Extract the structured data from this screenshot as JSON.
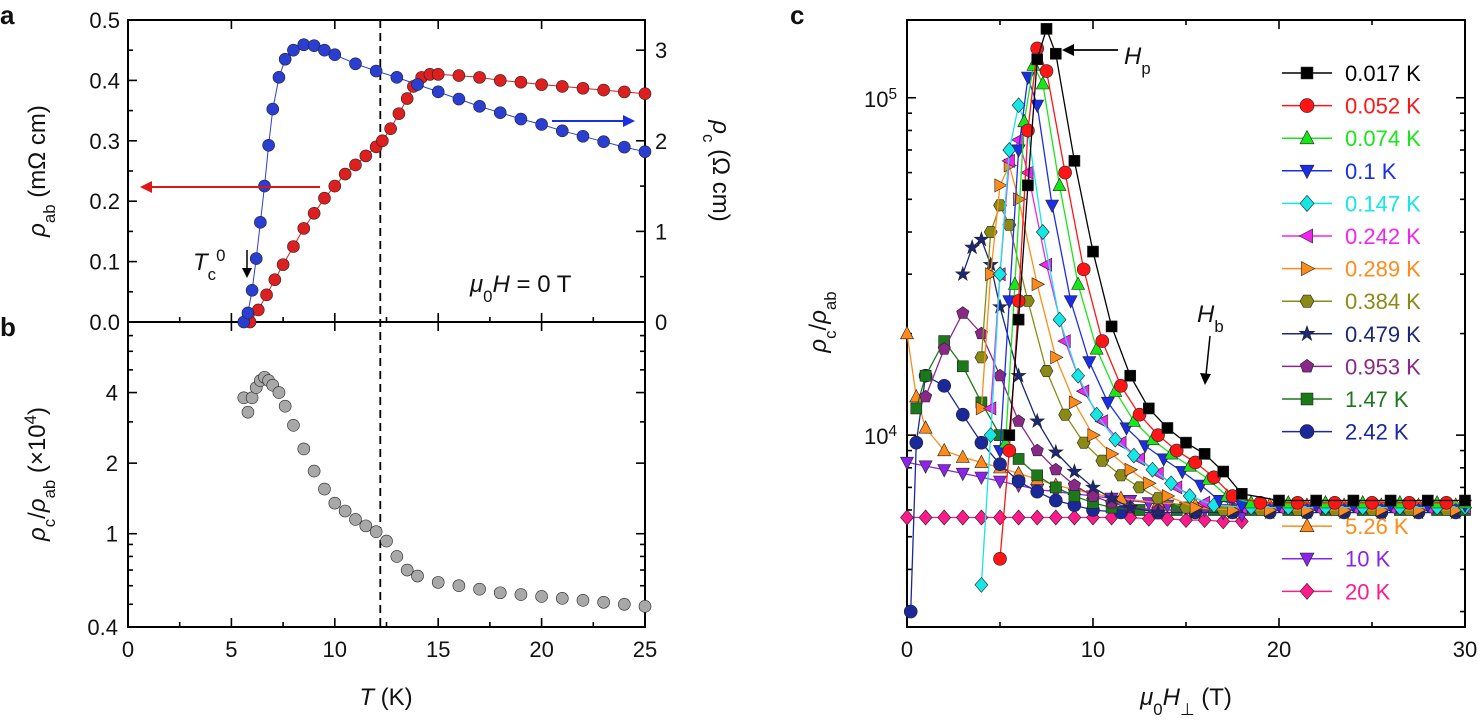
{
  "chart_data": [
    {
      "id": "a",
      "panel_label": "a",
      "type": "scatter",
      "xlabel": "T (K)",
      "xlim": [
        0,
        25
      ],
      "xticks": [
        0,
        5,
        10,
        15,
        20,
        25
      ],
      "ylabel_left": "ρab (mΩ cm)",
      "ylim_left": [
        0,
        0.5
      ],
      "yticks_left": [
        "0.0",
        "0.1",
        "0.2",
        "0.3",
        "0.4",
        "0.5"
      ],
      "ylabel_right": "ρc (Ω cm)",
      "ylim_right": [
        0,
        3.333
      ],
      "yticks_right": [
        "0",
        "1",
        "2",
        "3"
      ],
      "annotations": [
        "Tc0",
        "μ0H = 0 T"
      ],
      "dashed_line_x": 12.2,
      "series": [
        {
          "name": "ρab",
          "axis": "left",
          "color": "#dd1f1f",
          "x": [
            5.9,
            6.3,
            6.7,
            7.1,
            7.5,
            8.0,
            8.5,
            9.0,
            9.5,
            10.0,
            10.5,
            11.0,
            11.5,
            12.0,
            12.3,
            12.7,
            13.1,
            13.5,
            13.8,
            14.2,
            14.6,
            15.0,
            16,
            17,
            18,
            19,
            20,
            21,
            22,
            23,
            24,
            25
          ],
          "y": [
            0.0,
            0.02,
            0.045,
            0.07,
            0.095,
            0.125,
            0.155,
            0.18,
            0.205,
            0.225,
            0.245,
            0.26,
            0.275,
            0.29,
            0.3,
            0.32,
            0.345,
            0.37,
            0.39,
            0.405,
            0.41,
            0.41,
            0.408,
            0.405,
            0.4,
            0.397,
            0.393,
            0.39,
            0.387,
            0.384,
            0.381,
            0.378
          ]
        },
        {
          "name": "ρc",
          "axis": "right",
          "color": "#2a3fd1",
          "x": [
            5.6,
            5.8,
            6.0,
            6.2,
            6.4,
            6.6,
            6.8,
            7.0,
            7.3,
            7.6,
            8.0,
            8.5,
            9.0,
            9.5,
            10,
            11,
            12,
            13,
            14,
            15,
            16,
            17,
            18,
            19,
            20,
            21,
            22,
            23,
            24,
            25
          ],
          "y": [
            0.0,
            0.1,
            0.35,
            0.7,
            1.1,
            1.5,
            1.95,
            2.35,
            2.7,
            2.9,
            3.0,
            3.06,
            3.05,
            3.0,
            2.95,
            2.85,
            2.77,
            2.7,
            2.62,
            2.54,
            2.46,
            2.38,
            2.31,
            2.24,
            2.18,
            2.11,
            2.05,
            1.99,
            1.93,
            1.88
          ]
        }
      ]
    },
    {
      "id": "b",
      "panel_label": "b",
      "type": "scatter",
      "xlabel": "T (K)",
      "xlim": [
        0,
        25
      ],
      "xticks": [
        "0",
        "5",
        "10",
        "15",
        "20",
        "25"
      ],
      "ylabel": "ρc/ρab (×10⁴)",
      "yscale": "log",
      "ylim": [
        0.4,
        8
      ],
      "yticks": [
        "0.4",
        "1",
        "2",
        "4"
      ],
      "dashed_line_x": 12.2,
      "series": [
        {
          "name": "ρc/ρab",
          "color": "#a8a8a8",
          "x": [
            5.6,
            5.8,
            6.0,
            6.2,
            6.4,
            6.6,
            6.8,
            7.0,
            7.3,
            7.6,
            8.0,
            8.5,
            9.0,
            9.5,
            10,
            10.5,
            11,
            11.5,
            12.0,
            12.5,
            13.0,
            13.5,
            14,
            15,
            16,
            17,
            18,
            19,
            20,
            21,
            22,
            23,
            24,
            25
          ],
          "y": [
            3.8,
            3.3,
            3.8,
            4.2,
            4.5,
            4.65,
            4.5,
            4.3,
            4.0,
            3.5,
            2.9,
            2.3,
            1.85,
            1.55,
            1.35,
            1.25,
            1.15,
            1.08,
            1.02,
            0.93,
            0.8,
            0.7,
            0.66,
            0.62,
            0.6,
            0.58,
            0.56,
            0.55,
            0.54,
            0.53,
            0.52,
            0.51,
            0.5,
            0.49
          ]
        }
      ]
    },
    {
      "id": "c",
      "panel_label": "c",
      "type": "line",
      "xlabel": "μ0H⊥ (T)",
      "xlim": [
        0,
        30
      ],
      "xticks": [
        "0",
        "10",
        "20",
        "30"
      ],
      "ylabel": "ρc/ρab",
      "yscale": "log",
      "ylim": [
        2700,
        170000
      ],
      "yticks": [
        "10⁴",
        "10⁵"
      ],
      "annotations": [
        "Hp",
        "Hb"
      ],
      "series": [
        {
          "name": "0.017 K",
          "color": "#000000",
          "marker": "square",
          "x": [
            5.5,
            6.0,
            6.5,
            7.0,
            7.5,
            8.0,
            9.0,
            10,
            11,
            12,
            13,
            14,
            15,
            16,
            17,
            18,
            20,
            22,
            24,
            26,
            28,
            30
          ],
          "y": [
            10000,
            22000,
            55000,
            130000,
            160000,
            135000,
            65000,
            35000,
            21000,
            15000,
            12000,
            10500,
            9500,
            8800,
            7800,
            6700,
            6400,
            6400,
            6400,
            6400,
            6400,
            6400
          ]
        },
        {
          "name": "0.052 K",
          "color": "#ff1515",
          "marker": "circle",
          "x": [
            5.0,
            5.5,
            6.0,
            6.5,
            7.0,
            7.5,
            8.5,
            9.5,
            10.5,
            11.5,
            12.5,
            13.5,
            14.5,
            15.5,
            16.5,
            17.5,
            19,
            21,
            23,
            25,
            27,
            29
          ],
          "y": [
            4300,
            9000,
            25000,
            80000,
            140000,
            120000,
            60000,
            31000,
            19000,
            14000,
            11500,
            10000,
            9000,
            8300,
            7500,
            6600,
            6300,
            6300,
            6300,
            6300,
            6300,
            6300
          ]
        },
        {
          "name": "0.074 K",
          "color": "#19e619",
          "marker": "triangle-up",
          "x": [
            5.3,
            5.8,
            6.3,
            6.8,
            7.3,
            8.2,
            9.2,
            10.2,
            11.2,
            12.2,
            13.2,
            14.2,
            15.2,
            16.2,
            17.2,
            18.5,
            20.5,
            22.5,
            24.5,
            26.5,
            28.5,
            30
          ],
          "y": [
            9500,
            28000,
            85000,
            125000,
            110000,
            55000,
            28000,
            18000,
            13500,
            11000,
            9700,
            8800,
            8100,
            7400,
            6600,
            6300,
            6300,
            6300,
            6300,
            6300,
            6300,
            6300
          ]
        },
        {
          "name": "0.1 K",
          "color": "#1a2ee6",
          "marker": "triangle-down",
          "x": [
            5.0,
            5.5,
            6.0,
            6.5,
            7.0,
            7.8,
            8.8,
            9.8,
            10.8,
            11.8,
            12.8,
            13.8,
            14.8,
            15.8,
            16.8,
            18,
            20,
            22,
            24,
            26,
            28,
            30
          ],
          "y": [
            9000,
            25000,
            70000,
            115000,
            95000,
            48000,
            25000,
            16500,
            12500,
            10500,
            9300,
            8500,
            7800,
            7100,
            6400,
            6200,
            6200,
            6200,
            6200,
            6200,
            6200,
            6200
          ]
        },
        {
          "name": "0.147 K",
          "color": "#15e6e6",
          "marker": "diamond",
          "x": [
            4.0,
            4.5,
            5.0,
            5.5,
            6.0,
            6.5,
            7.3,
            8.2,
            9.2,
            10.2,
            11.2,
            12.2,
            13.2,
            14.2,
            15.2,
            16.5,
            18.5,
            20.5,
            22.5,
            24.5,
            26.5,
            28.5,
            30
          ],
          "y": [
            3600,
            10000,
            30000,
            70000,
            95000,
            80000,
            40000,
            22000,
            15000,
            11500,
            9700,
            8700,
            7900,
            7200,
            6600,
            6200,
            6100,
            6100,
            6100,
            6100,
            6100,
            6100,
            6100
          ]
        },
        {
          "name": "0.242 K",
          "color": "#ef25ef",
          "marker": "triangle-left",
          "x": [
            4.5,
            5.0,
            5.5,
            6.0,
            6.5,
            7.5,
            8.5,
            9.5,
            10.5,
            11.5,
            12.5,
            13.5,
            14.5,
            16,
            18,
            20,
            22,
            24,
            26,
            28,
            30
          ],
          "y": [
            12000,
            30000,
            65000,
            75000,
            60000,
            32000,
            19000,
            13500,
            11000,
            9500,
            8500,
            7700,
            7000,
            6300,
            6100,
            6100,
            6100,
            6100,
            6100,
            6100,
            6100
          ]
        },
        {
          "name": "0.289 K",
          "color": "#ff8c1a",
          "marker": "triangle-right",
          "x": [
            4.0,
            4.5,
            5.0,
            5.5,
            6.0,
            7.0,
            8.0,
            9.0,
            10.0,
            11.0,
            12.0,
            13.0,
            14.0,
            15.5,
            17.5,
            19.5,
            21.5,
            23.5,
            25.5,
            27.5,
            29.5
          ],
          "y": [
            12000,
            30000,
            55000,
            63000,
            50000,
            28000,
            17000,
            12500,
            10000,
            8800,
            7900,
            7200,
            6600,
            6100,
            6000,
            6000,
            6000,
            6000,
            6000,
            6000,
            6000
          ]
        },
        {
          "name": "0.384 K",
          "color": "#8a8a15",
          "marker": "hexagon",
          "x": [
            4.0,
            4.5,
            5.0,
            5.5,
            6.5,
            7.5,
            8.5,
            9.5,
            10.5,
            11.5,
            12.5,
            13.5,
            15,
            17,
            19,
            21,
            23,
            25,
            27,
            29
          ],
          "y": [
            17000,
            40000,
            48000,
            42000,
            25000,
            15500,
            11500,
            9500,
            8400,
            7600,
            7000,
            6500,
            6100,
            6000,
            6000,
            6000,
            6000,
            6000,
            6000,
            6000
          ]
        },
        {
          "name": "0.479 K",
          "color": "#1a2877",
          "marker": "star",
          "x": [
            3.0,
            3.5,
            4.0,
            4.5,
            5.0,
            6.0,
            7.0,
            8.0,
            9.0,
            10.0,
            11.0,
            12.0,
            13.5,
            15.5,
            17.5,
            19.5,
            21.5,
            23.5,
            25.5,
            27.5,
            29.5
          ],
          "y": [
            30000,
            36000,
            38000,
            32000,
            24000,
            15000,
            11000,
            8900,
            7800,
            7000,
            6500,
            6100,
            5900,
            5900,
            5900,
            5900,
            5900,
            5900,
            5900,
            5900,
            5900
          ]
        },
        {
          "name": "0.953 K",
          "color": "#8a2888",
          "marker": "pentagon",
          "x": [
            1.0,
            2.0,
            3.0,
            4.0,
            5.0,
            6.0,
            7.0,
            8.0,
            9.0,
            10.0,
            11.0,
            12.0,
            13.5,
            15.5,
            17.5,
            19.5,
            21.5,
            23.5,
            25.5,
            27.5,
            29.5
          ],
          "y": [
            13000,
            18000,
            23000,
            20000,
            15000,
            11000,
            9000,
            7900,
            7100,
            6600,
            6300,
            6100,
            6000,
            6000,
            6000,
            6000,
            6000,
            6000,
            6000,
            6000,
            6000
          ]
        },
        {
          "name": "1.47 K",
          "color": "#1a7a1a",
          "marker": "square",
          "x": [
            0.5,
            1.0,
            2.0,
            3.0,
            4.0,
            5.0,
            6.0,
            7.0,
            8.0,
            9.0,
            10.0,
            11.0,
            12.5,
            14.5,
            16.5,
            18.5,
            20.5,
            22.5,
            24.5,
            26.5,
            28.5,
            30
          ],
          "y": [
            12000,
            15000,
            19000,
            16000,
            12500,
            10000,
            8500,
            7600,
            7000,
            6600,
            6300,
            6100,
            6000,
            6000,
            6000,
            6000,
            6000,
            6000,
            6000,
            6000,
            6000,
            6000
          ]
        },
        {
          "name": "2.42 K",
          "color": "#1a2899",
          "marker": "circle",
          "x": [
            0.2,
            0.5,
            1.0,
            2.0,
            3.0,
            4.0,
            5.0,
            6.0,
            7.0,
            8.0,
            9.0,
            10.0,
            11.5,
            13.5,
            15.5,
            17.5,
            19.5,
            21.5,
            23.5,
            25.5,
            27.5,
            29.5
          ],
          "y": [
            3000,
            9500,
            15000,
            14000,
            11500,
            9500,
            8200,
            7300,
            6800,
            6400,
            6200,
            6000,
            5900,
            5900,
            5900,
            5900,
            5900,
            5900,
            5900,
            5900,
            5900,
            5900
          ]
        },
        {
          "name": "5.26 K",
          "color": "#ff8c1a",
          "marker": "triangle-up",
          "x": [
            0.0,
            0.5,
            1.0,
            2.0,
            3.0,
            4.0,
            5.0,
            6.0,
            7.0,
            8.0,
            9.0,
            10.0,
            11.5,
            13.5,
            15.5,
            17.5,
            19.5,
            21.5,
            23.5,
            25.5,
            27.5,
            29.5
          ],
          "y": [
            20000,
            13000,
            10500,
            9000,
            8600,
            8300,
            8000,
            7700,
            7400,
            7100,
            6900,
            6700,
            6500,
            6300,
            6200,
            6200,
            6200,
            6200,
            6200,
            6200,
            6200,
            6200
          ]
        },
        {
          "name": "10 K",
          "color": "#8a25e6",
          "marker": "triangle-down",
          "x": [
            0.0,
            1.0,
            2.0,
            3.0,
            4.0,
            5.0,
            6.0,
            7.0,
            8.0,
            9.0,
            10.0,
            11.0,
            12.0,
            13.0,
            14.0,
            15.0,
            16.0,
            17.0,
            18.0
          ],
          "y": [
            8300,
            8100,
            7900,
            7700,
            7500,
            7300,
            7100,
            6900,
            6800,
            6700,
            6600,
            6500,
            6400,
            6300,
            6200,
            6100,
            6000,
            5900,
            5800
          ]
        },
        {
          "name": "20 K",
          "color": "#ff1a8c",
          "marker": "diamond",
          "x": [
            0.0,
            1.0,
            2.0,
            3.0,
            4.0,
            5.0,
            6.0,
            7.0,
            8.0,
            9.0,
            10.0,
            11.0,
            12.0,
            13.0,
            14.0,
            15.0,
            16.0,
            17.0,
            18.0
          ],
          "y": [
            5700,
            5700,
            5700,
            5700,
            5700,
            5700,
            5700,
            5700,
            5700,
            5700,
            5700,
            5700,
            5700,
            5650,
            5650,
            5600,
            5600,
            5550,
            5550
          ]
        }
      ]
    }
  ]
}
